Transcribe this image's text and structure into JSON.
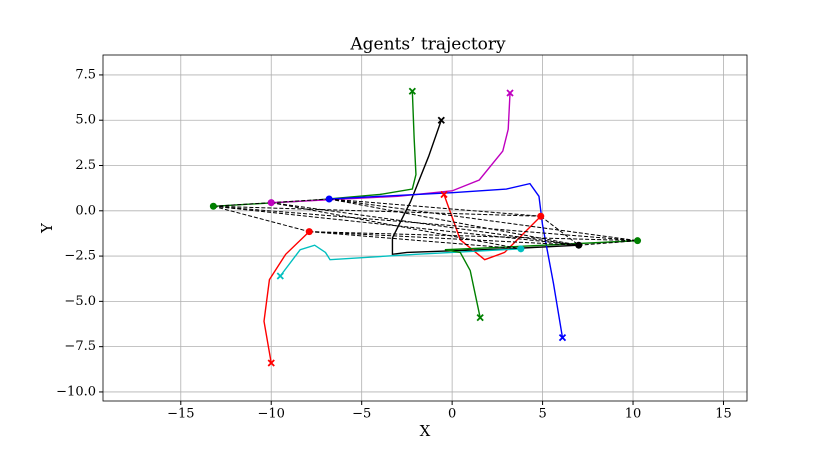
{
  "chart_data": {
    "type": "line",
    "title": "Agents’ trajectory",
    "x_label": "X",
    "y_label": "Y",
    "xlim": [
      -19.3,
      16.3
    ],
    "ylim": [
      -10.5,
      8.6
    ],
    "grid": true,
    "xticks": [
      {
        "value": -15,
        "label": "−15"
      },
      {
        "value": -10,
        "label": "−10"
      },
      {
        "value": -5,
        "label": "−5"
      },
      0,
      5,
      10,
      15
    ],
    "yticks": [
      {
        "value": -10,
        "label": "−10.0"
      },
      {
        "value": -7.5,
        "label": "−7.5"
      },
      {
        "value": -5,
        "label": "−5.0"
      },
      {
        "value": -2.5,
        "label": "−2.5"
      },
      {
        "value": 0,
        "label": "0.0"
      },
      {
        "value": 2.5,
        "label": "2.5"
      },
      {
        "value": 5,
        "label": "5.0"
      },
      {
        "value": 7.5,
        "label": "7.5"
      }
    ],
    "series": [
      {
        "color": "#008000",
        "x": [
          -2.2,
          -2.1,
          -2.0,
          -2.2,
          -4,
          -8,
          -13.2
        ],
        "values": [
          6.6,
          4,
          2,
          1.2,
          0.9,
          0.55,
          0.25
        ]
      },
      {
        "color": "#000000",
        "x": [
          -0.6,
          -1.3,
          -2.3,
          -3.3,
          -3.3,
          -2.5,
          3,
          7.0
        ],
        "values": [
          5.0,
          3,
          0.5,
          -1.5,
          -2.4,
          -2.3,
          -2.1,
          -1.9
        ]
      },
      {
        "color": "#bf00bf",
        "x": [
          3.2,
          3.1,
          2.8,
          1.5,
          0,
          -3,
          -7,
          -10
        ],
        "values": [
          6.5,
          4.5,
          3.3,
          1.7,
          1.1,
          0.8,
          0.6,
          0.45
        ]
      },
      {
        "color": "#0000ff",
        "x": [
          6.1,
          5.6,
          5.0,
          4.8,
          4.3,
          3,
          0,
          -3,
          -6.8
        ],
        "values": [
          -7.0,
          -4,
          -0.8,
          0.8,
          1.5,
          1.2,
          1.0,
          0.85,
          0.65
        ]
      },
      {
        "color": "#ff0000",
        "x": [
          -10.0,
          -10.4,
          -10.1,
          -9.2,
          -7.9
        ],
        "values": [
          -8.4,
          -6.1,
          -3.8,
          -2.4,
          -1.15
        ]
      },
      {
        "color": "#ff0000",
        "x": [
          -0.45,
          0.45,
          1.8,
          2.9,
          4.9
        ],
        "values": [
          0.9,
          -1.6,
          -2.7,
          -2.3,
          -0.3
        ]
      },
      {
        "color": "#00bfbf",
        "x": [
          -9.5,
          -8.4,
          -7.6,
          -7.0,
          -6.75,
          -2,
          3.8
        ],
        "values": [
          -3.6,
          -2.15,
          -1.9,
          -2.3,
          -2.7,
          -2.4,
          -2.1
        ]
      },
      {
        "color": "#008000",
        "x": [
          1.55,
          1.0,
          0.45,
          -0.4,
          3,
          10.25
        ],
        "values": [
          -5.9,
          -3.3,
          -2.3,
          -2.15,
          -2.0,
          -1.65
        ]
      }
    ],
    "agents": [
      {
        "x": -13.2,
        "y": 0.25,
        "color": "#008000"
      },
      {
        "x": -10,
        "y": 0.45,
        "color": "#bf00bf"
      },
      {
        "x": -6.8,
        "y": 0.65,
        "color": "#0000ff"
      },
      {
        "x": -7.9,
        "y": -1.15,
        "color": "#ff0000"
      },
      {
        "x": 4.9,
        "y": -0.3,
        "color": "#ff0000"
      },
      {
        "x": 3.8,
        "y": -2.1,
        "color": "#00bfbf"
      },
      {
        "x": 7.0,
        "y": -1.9,
        "color": "#000000"
      },
      {
        "x": 10.25,
        "y": -1.65,
        "color": "#008000"
      }
    ],
    "links": [
      [
        0,
        1
      ],
      [
        0,
        3
      ],
      [
        0,
        6
      ],
      [
        0,
        4
      ],
      [
        0,
        7
      ],
      [
        1,
        2
      ],
      [
        1,
        5
      ],
      [
        1,
        6
      ],
      [
        2,
        4
      ],
      [
        2,
        7
      ],
      [
        2,
        6
      ],
      [
        3,
        5
      ],
      [
        3,
        6
      ],
      [
        3,
        7
      ],
      [
        4,
        6
      ],
      [
        6,
        7
      ]
    ]
  }
}
